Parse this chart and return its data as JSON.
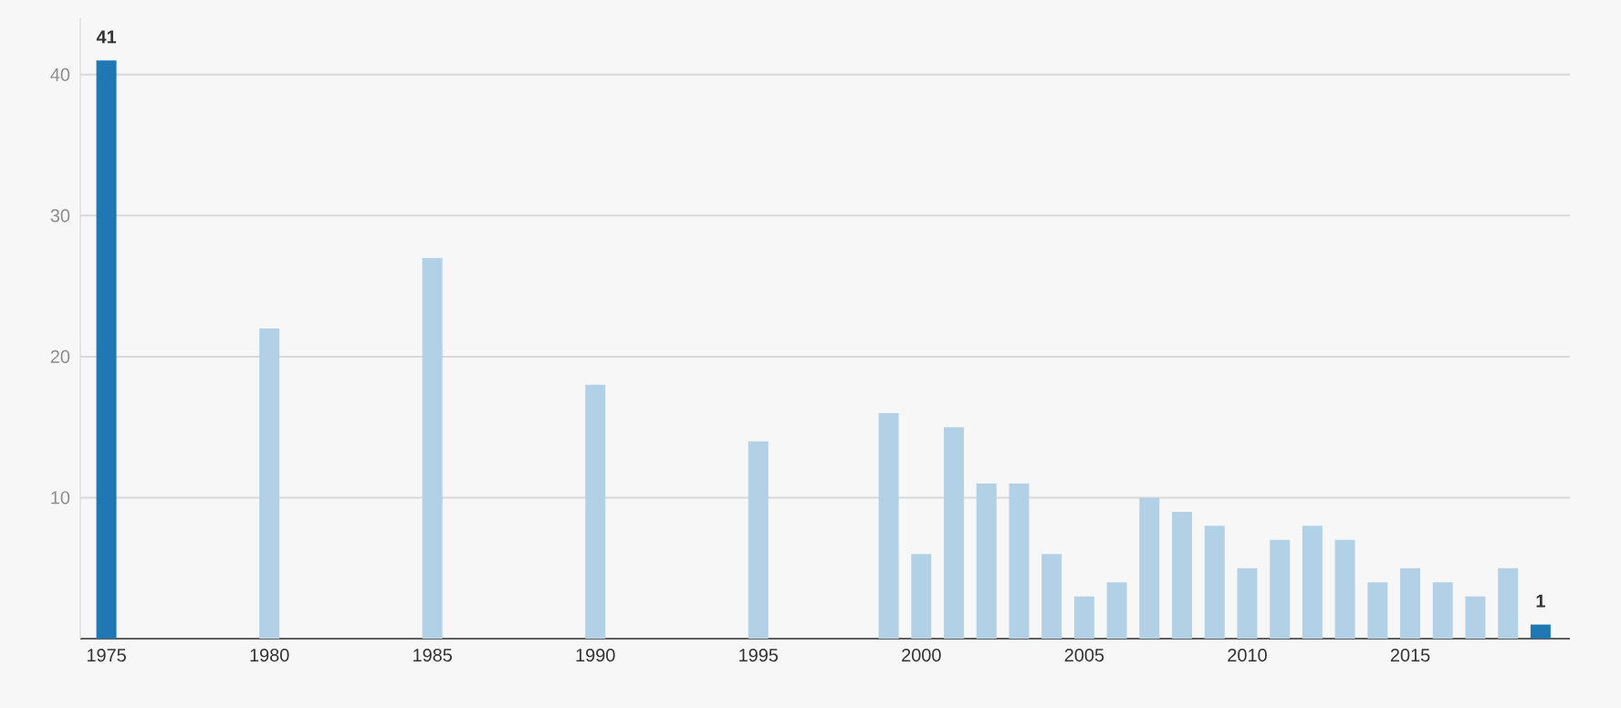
{
  "chart_data": {
    "type": "bar",
    "x": [
      1975,
      1980,
      1985,
      1990,
      1995,
      1999,
      2000,
      2001,
      2002,
      2003,
      2004,
      2005,
      2006,
      2007,
      2008,
      2009,
      2010,
      2011,
      2012,
      2013,
      2014,
      2015,
      2016,
      2017,
      2018,
      2019
    ],
    "values": [
      41,
      22,
      27,
      18,
      14,
      16,
      6,
      15,
      11,
      11,
      6,
      3,
      4,
      10,
      9,
      8,
      5,
      7,
      8,
      7,
      4,
      5,
      4,
      3,
      5,
      1
    ],
    "colors": [
      "#1f77b4",
      "#b3d1e6",
      "#b3d1e6",
      "#b3d1e6",
      "#b3d1e6",
      "#b3d1e6",
      "#b3d1e6",
      "#b3d1e6",
      "#b3d1e6",
      "#b3d1e6",
      "#b3d1e6",
      "#b3d1e6",
      "#b3d1e6",
      "#b3d1e6",
      "#b3d1e6",
      "#b3d1e6",
      "#b3d1e6",
      "#b3d1e6",
      "#b3d1e6",
      "#b3d1e6",
      "#b3d1e6",
      "#b3d1e6",
      "#b3d1e6",
      "#b3d1e6",
      "#b3d1e6",
      "#1f77b4"
    ],
    "value_labels": [
      "41",
      null,
      null,
      null,
      null,
      null,
      null,
      null,
      null,
      null,
      null,
      null,
      null,
      null,
      null,
      null,
      null,
      null,
      null,
      null,
      null,
      null,
      null,
      null,
      null,
      "1"
    ],
    "xlim": [
      1974.2,
      2019.9
    ],
    "xticks": [
      1975,
      1980,
      1985,
      1990,
      1995,
      2000,
      2005,
      2010,
      2015
    ],
    "ylim": [
      0,
      44
    ],
    "yticks": [
      {
        "value": 0,
        "label": null
      },
      10,
      20,
      30,
      40
    ],
    "grid": "y"
  }
}
